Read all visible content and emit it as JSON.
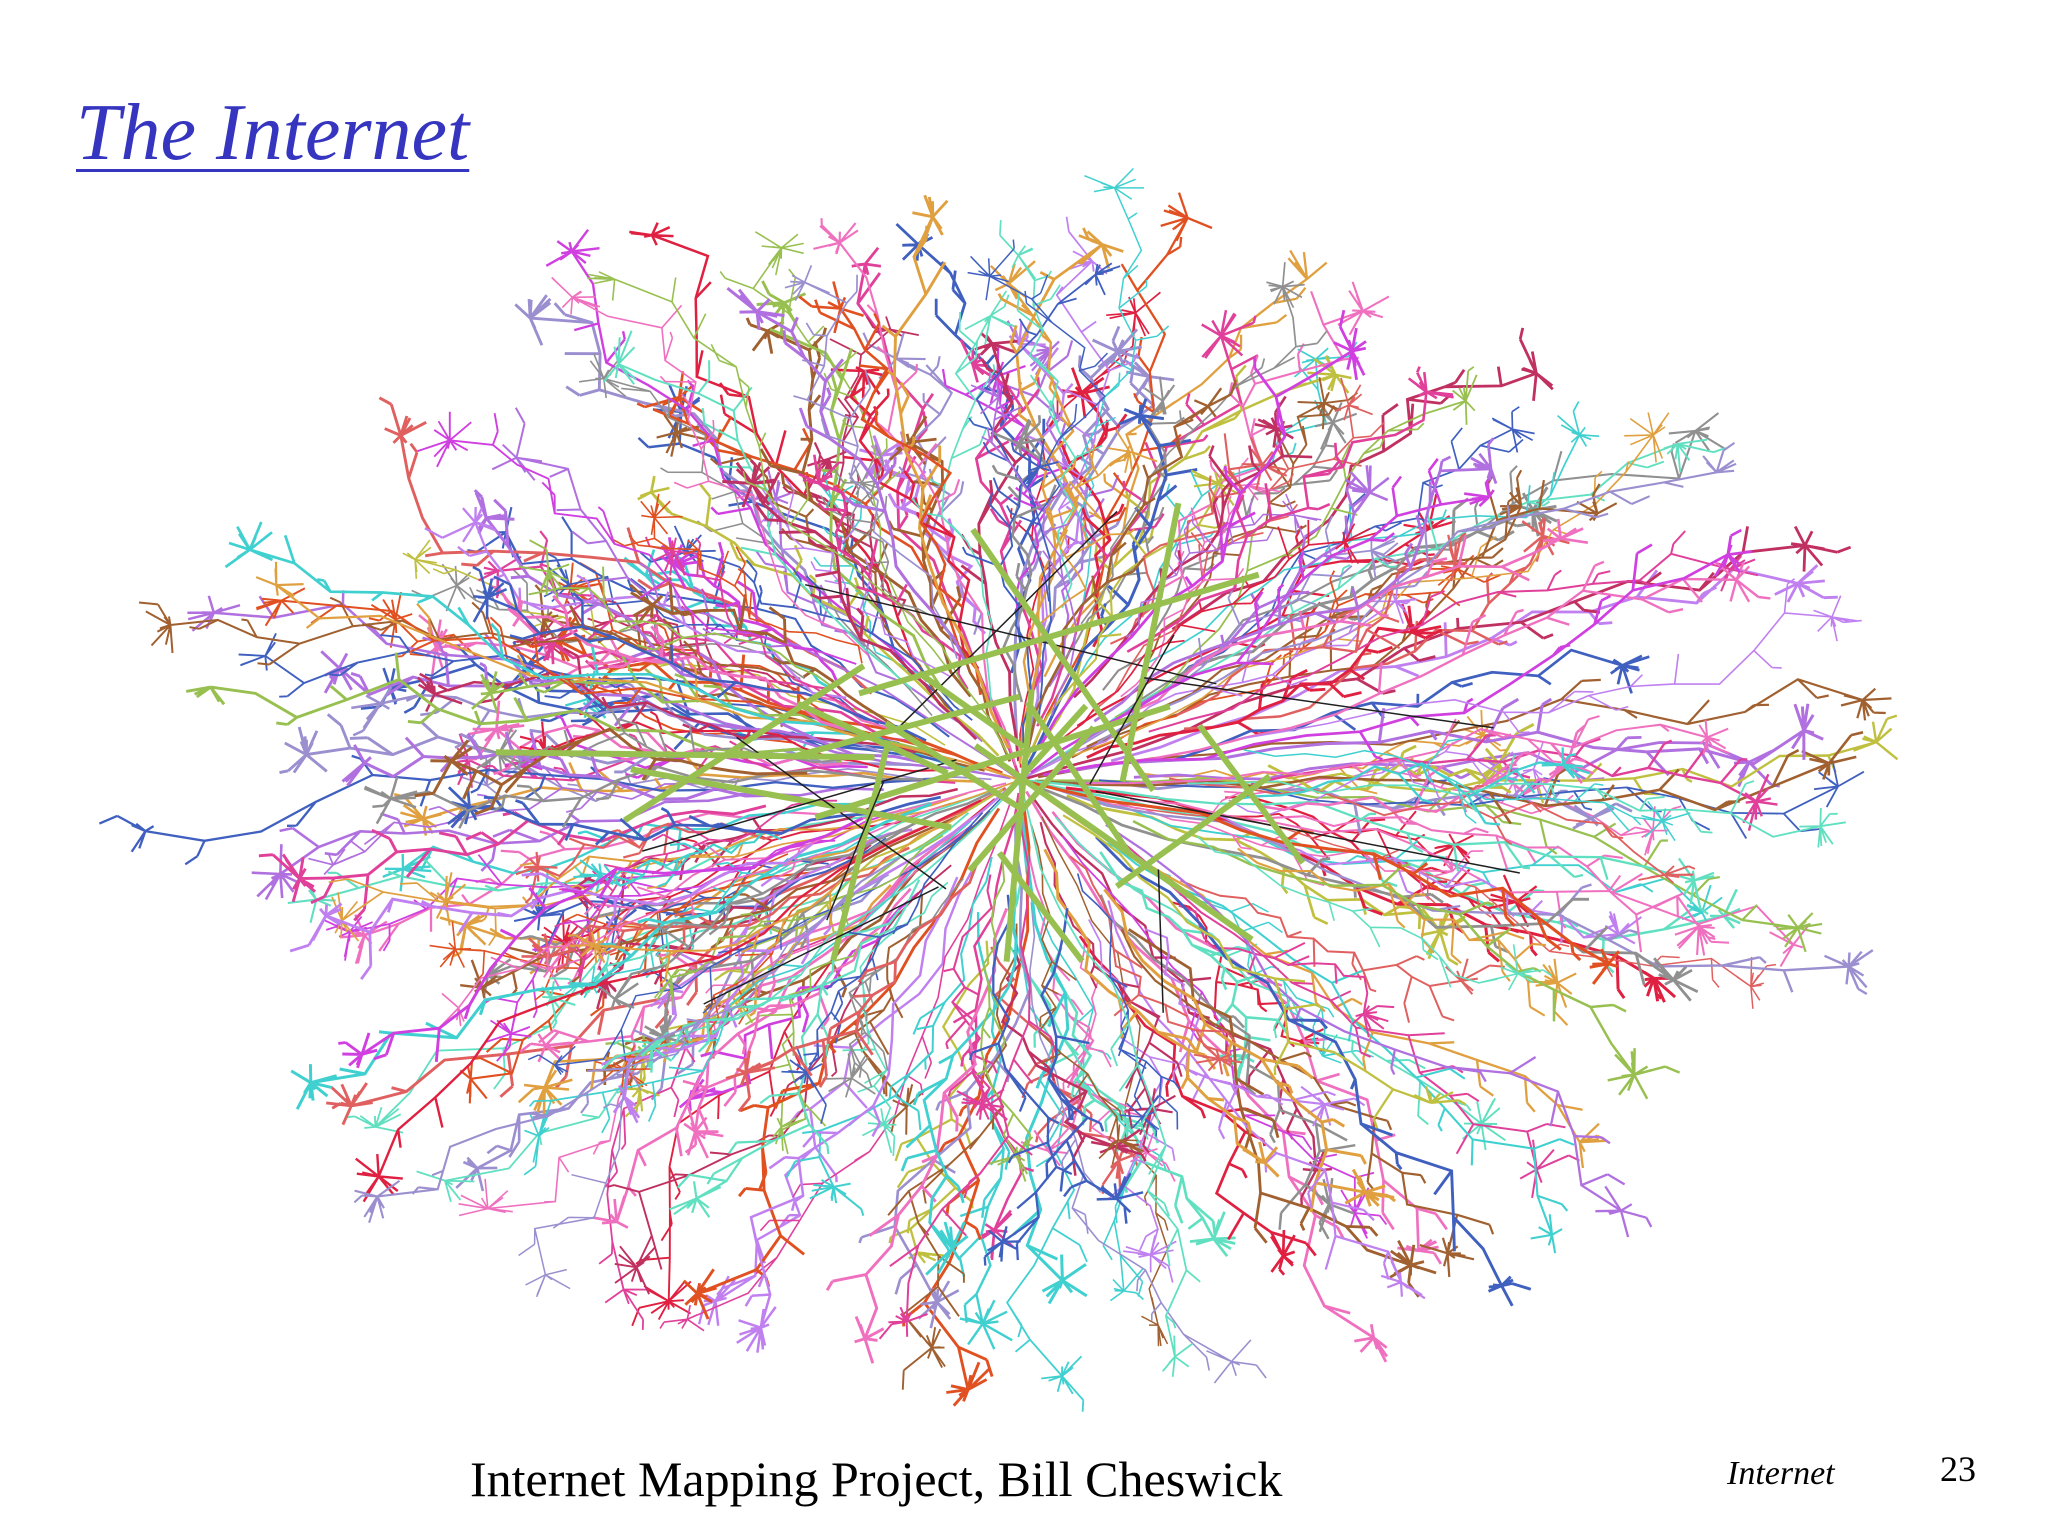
{
  "header": {
    "title": "The Internet"
  },
  "image": {
    "caption": "Internet Mapping Project, Bill Cheswick"
  },
  "footer": {
    "section": "Internet",
    "page_number": 23
  }
}
